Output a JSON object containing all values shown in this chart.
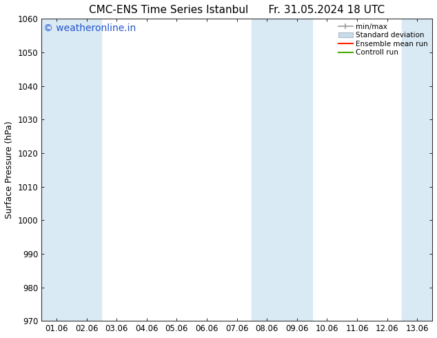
{
  "title_left": "CMC-ENS Time Series Istanbul",
  "title_right": "Fr. 31.05.2024 18 UTC",
  "ylabel": "Surface Pressure (hPa)",
  "ylim": [
    970,
    1060
  ],
  "yticks": [
    970,
    980,
    990,
    1000,
    1010,
    1020,
    1030,
    1040,
    1050,
    1060
  ],
  "x_labels": [
    "01.06",
    "02.06",
    "03.06",
    "04.06",
    "05.06",
    "06.06",
    "07.06",
    "08.06",
    "09.06",
    "10.06",
    "11.06",
    "12.06",
    "13.06"
  ],
  "shaded_columns": [
    0,
    1,
    7,
    8,
    12
  ],
  "shade_color": "#daeaf5",
  "background_color": "#ffffff",
  "watermark": "© weatheronline.in",
  "watermark_color": "#2255cc",
  "legend_entries": [
    "min/max",
    "Standard deviation",
    "Ensemble mean run",
    "Controll run"
  ],
  "legend_line_colors": [
    "#aaaaaa",
    "#c5d8e8",
    "#ff0000",
    "#00aa00"
  ],
  "title_fontsize": 11,
  "axis_label_fontsize": 9,
  "tick_fontsize": 8.5,
  "watermark_fontsize": 10
}
